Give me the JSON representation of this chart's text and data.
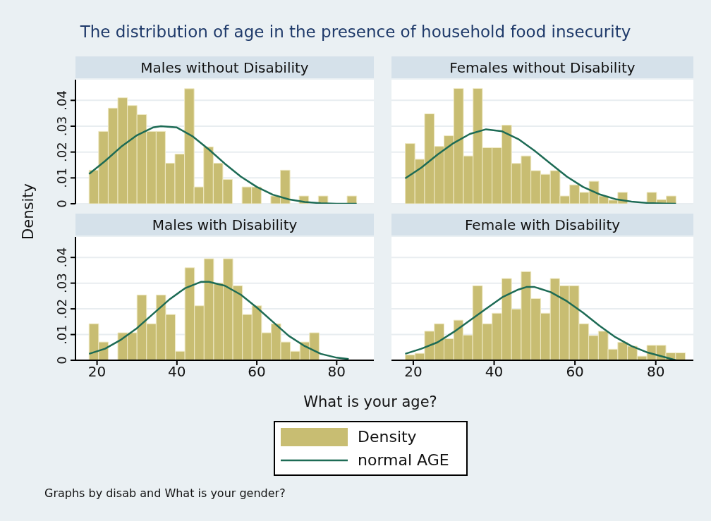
{
  "chart_data": [
    {
      "type": "histogram",
      "title": "Males without Disability",
      "ylabel": "Density",
      "legend": "bottom",
      "grid": "y",
      "tick_labels": "y",
      "annotations": [
        "The distribution of age in the presence of household food insecurity",
        "Graphs by disab and What is your gender?"
      ],
      "xlim": [
        14.6,
        89.3
      ],
      "ylim": [
        0,
        0.048
      ],
      "xticks": [
        20,
        40,
        60,
        80
      ],
      "yticks": [
        0,
        {
          "value": 0.01,
          "label": ".01"
        },
        {
          "value": 0.02,
          "label": ".02"
        },
        {
          "value": 0.03,
          "label": ".03"
        },
        {
          "value": 0.04,
          "label": ".04"
        }
      ],
      "series": [
        {
          "name": "Density",
          "color": "#c8bd72",
          "bins": [
            18,
            20.4,
            22.8,
            25.2,
            27.6,
            30,
            32.4,
            34.8,
            37.1,
            39.5,
            41.9,
            44.3,
            46.7,
            49.1,
            51.5,
            53.9,
            56.3,
            58.7,
            61.1,
            63.5,
            65.9,
            68.3,
            70.6,
            73,
            75.4,
            77.8,
            82.6,
            85
          ],
          "values": [
            0.013,
            0.028,
            0.037,
            0.041,
            0.038,
            0.0345,
            0.028,
            0.028,
            0.0157,
            0.0192,
            0.0445,
            0.0065,
            0.022,
            0.0157,
            0.0094,
            0,
            0.0065,
            0.0065,
            0,
            0.003,
            0.013,
            0,
            0.003,
            0,
            0.003,
            0,
            0.003
          ]
        },
        {
          "type": "line",
          "name": "normal AGE",
          "color": "#1d6b55",
          "x": [
            18,
            22,
            26,
            30,
            34,
            36,
            40,
            44,
            48,
            52,
            56,
            60,
            64,
            68,
            72,
            76,
            80,
            85
          ],
          "values": [
            0.0115,
            0.0165,
            0.022,
            0.0265,
            0.0295,
            0.03,
            0.0295,
            0.026,
            0.021,
            0.0155,
            0.0105,
            0.0065,
            0.0035,
            0.0017,
            0.0007,
            0.0002,
            0,
            0
          ]
        }
      ]
    },
    {
      "type": "histogram",
      "title": "Females without Disability",
      "grid": "y",
      "tick_labels": false,
      "xlim": [
        14.6,
        89.3
      ],
      "ylim": [
        0,
        0.048
      ],
      "xticks": [
        20,
        40,
        60,
        80
      ],
      "yticks": [
        0,
        0.01,
        0.02,
        0.03,
        0.04
      ],
      "series": [
        {
          "color": "#c8bd72",
          "bins": [
            18,
            20.4,
            22.8,
            25.2,
            27.6,
            30,
            32.4,
            34.8,
            37.1,
            39.5,
            41.9,
            44.3,
            46.7,
            49.1,
            51.5,
            53.9,
            56.3,
            58.7,
            61.1,
            63.5,
            65.9,
            68.3,
            70.6,
            73,
            77.8,
            80.2,
            82.6,
            85
          ],
          "values": [
            0.0233,
            0.0172,
            0.0348,
            0.0222,
            0.0263,
            0.0446,
            0.0185,
            0.0446,
            0.0217,
            0.0217,
            0.0304,
            0.0156,
            0.0185,
            0.0128,
            0.0114,
            0.0128,
            0.003,
            0.0073,
            0.0044,
            0.0087,
            0.003,
            0.0014,
            0.0044,
            0,
            0.0044,
            0.0016,
            0.003
          ]
        },
        {
          "type": "line",
          "color": "#1d6b55",
          "x": [
            18,
            22,
            26,
            30,
            34,
            38,
            42,
            46,
            50,
            54,
            58,
            62,
            66,
            70,
            74,
            78,
            82,
            85
          ],
          "values": [
            0.0098,
            0.014,
            0.019,
            0.0235,
            0.027,
            0.0288,
            0.028,
            0.025,
            0.0205,
            0.0155,
            0.0105,
            0.0065,
            0.0037,
            0.0018,
            0.0008,
            0.0003,
            0.0001,
            0
          ]
        }
      ]
    },
    {
      "type": "histogram",
      "title": "Males with Disability",
      "xlabel": "What is your age?",
      "grid": "y",
      "xlim": [
        14.6,
        89.3
      ],
      "ylim": [
        0,
        0.048
      ],
      "xticks": [
        20,
        40,
        60,
        80
      ],
      "yticks": [
        0,
        {
          "value": 0.01,
          "label": ".01"
        },
        {
          "value": 0.02,
          "label": ".02"
        },
        {
          "value": 0.03,
          "label": ".03"
        },
        {
          "value": 0.04,
          "label": ".04"
        }
      ],
      "series": [
        {
          "color": "#c8bd72",
          "bins": [
            18,
            20.4,
            22.8,
            25.2,
            27.6,
            30,
            32.4,
            34.8,
            37.2,
            39.6,
            42,
            44.4,
            46.8,
            49.2,
            51.6,
            54,
            56.4,
            58.8,
            61.2,
            63.6,
            66,
            68.4,
            70.8,
            73.2,
            75.6
          ],
          "values": [
            0.0142,
            0.0071,
            0,
            0.0107,
            0.0107,
            0.0254,
            0.0142,
            0.0254,
            0.0178,
            0.0035,
            0.036,
            0.0212,
            0.0395,
            0.03,
            0.0395,
            0.029,
            0.0178,
            0.0212,
            0.0107,
            0.0142,
            0.0071,
            0.0035,
            0.0071,
            0.0107
          ]
        },
        {
          "type": "line",
          "color": "#1d6b55",
          "x": [
            18,
            22,
            26,
            30,
            34,
            38,
            42,
            46,
            48,
            52,
            56,
            60,
            64,
            68,
            72,
            76,
            80,
            83
          ],
          "values": [
            0.0025,
            0.0045,
            0.008,
            0.0125,
            0.018,
            0.0235,
            0.028,
            0.0305,
            0.0305,
            0.029,
            0.0255,
            0.0205,
            0.015,
            0.0095,
            0.0055,
            0.0025,
            0.001,
            0.0005
          ]
        }
      ]
    },
    {
      "type": "histogram",
      "title": "Female with Disability",
      "grid": "y",
      "tick_labels": "x",
      "xlim": [
        14.6,
        89.3
      ],
      "ylim": [
        0,
        0.048
      ],
      "xticks": [
        20,
        40,
        60,
        80
      ],
      "yticks": [
        0,
        0.01,
        0.02,
        0.03,
        0.04
      ],
      "series": [
        {
          "color": "#c8bd72",
          "bins": [
            18,
            20.4,
            22.8,
            25.2,
            27.6,
            30,
            32.3,
            34.7,
            37.1,
            39.5,
            41.9,
            44.3,
            46.7,
            49.1,
            51.5,
            53.9,
            56.2,
            58.6,
            61,
            63.4,
            65.8,
            68.2,
            70.6,
            73,
            75.4,
            77.8,
            80.1,
            82.5,
            84.9,
            87.3
          ],
          "values": [
            0.0021,
            0.0027,
            0.0113,
            0.0142,
            0.0084,
            0.0156,
            0.0098,
            0.029,
            0.0142,
            0.0183,
            0.0318,
            0.0199,
            0.0345,
            0.024,
            0.0183,
            0.0318,
            0.029,
            0.029,
            0.0142,
            0.0096,
            0.0113,
            0.0043,
            0.007,
            0.0055,
            0.0016,
            0.0058,
            0.0058,
            0.0029,
            0.0029
          ]
        },
        {
          "type": "line",
          "color": "#1d6b55",
          "x": [
            18,
            22,
            26,
            30,
            34,
            38,
            42,
            46,
            48,
            50,
            54,
            58,
            62,
            66,
            70,
            74,
            78,
            82,
            85
          ],
          "values": [
            0.0025,
            0.0045,
            0.007,
            0.011,
            0.0155,
            0.02,
            0.0245,
            0.0275,
            0.0285,
            0.0285,
            0.0265,
            0.023,
            0.0185,
            0.0135,
            0.009,
            0.0055,
            0.003,
            0.0013,
            0
          ]
        }
      ]
    }
  ]
}
